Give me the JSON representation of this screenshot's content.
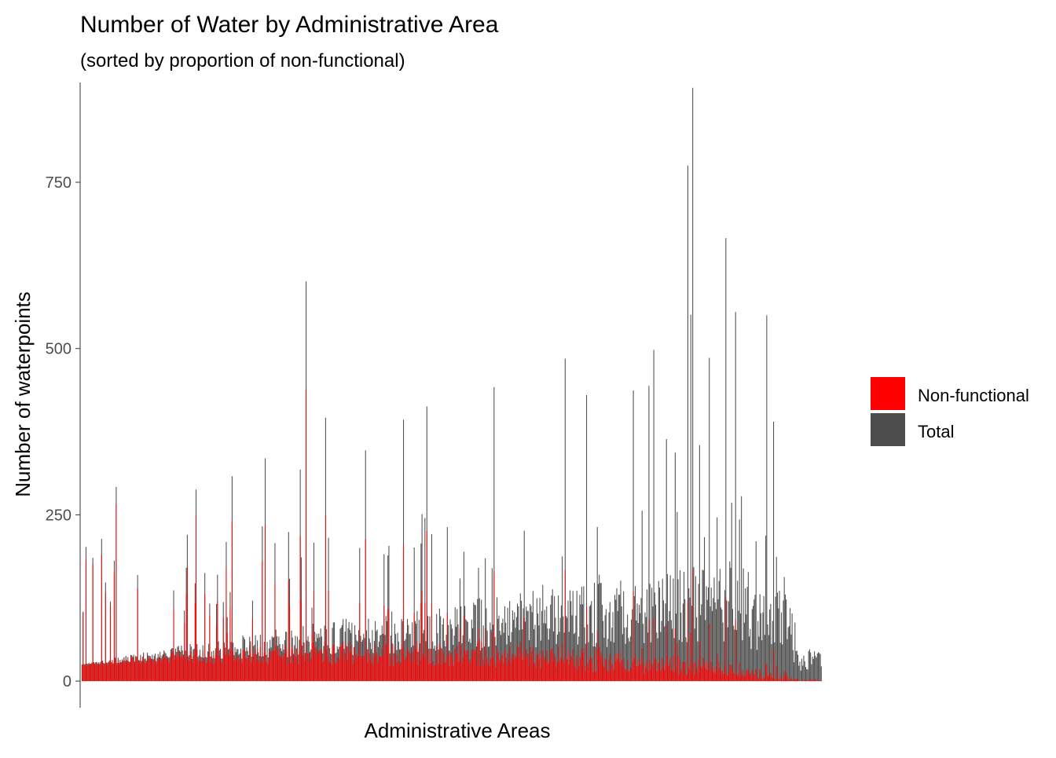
{
  "chart_data": {
    "type": "bar",
    "title": "Number of Water by Administrative Area",
    "subtitle": "(sorted by proportion of non-functional)",
    "xlabel": "Administrative Areas",
    "ylabel": "Number of waterpoints",
    "ylim": [
      -40,
      900
    ],
    "yticks": [
      0,
      250,
      500,
      750
    ],
    "grid": false,
    "legend": {
      "position": "right",
      "entries": [
        {
          "name": "Non-functional",
          "color": "#FF0000"
        },
        {
          "name": "Total",
          "color": "#4D4D4D"
        }
      ]
    },
    "bar_count": 760,
    "peaks_total": [
      {
        "index": 35,
        "value": 292
      },
      {
        "index": 117,
        "value": 288
      },
      {
        "index": 154,
        "value": 308
      },
      {
        "index": 188,
        "value": 335
      },
      {
        "index": 224,
        "value": 318
      },
      {
        "index": 230,
        "value": 601
      },
      {
        "index": 250,
        "value": 396
      },
      {
        "index": 291,
        "value": 347
      },
      {
        "index": 330,
        "value": 393
      },
      {
        "index": 354,
        "value": 413
      },
      {
        "index": 423,
        "value": 442
      },
      {
        "index": 496,
        "value": 485
      },
      {
        "index": 518,
        "value": 430
      },
      {
        "index": 566,
        "value": 437
      },
      {
        "index": 582,
        "value": 444
      },
      {
        "index": 587,
        "value": 498
      },
      {
        "index": 622,
        "value": 775
      },
      {
        "index": 625,
        "value": 551
      },
      {
        "index": 627,
        "value": 892
      },
      {
        "index": 644,
        "value": 486
      },
      {
        "index": 661,
        "value": 666
      },
      {
        "index": 671,
        "value": 555
      },
      {
        "index": 703,
        "value": 550
      },
      {
        "index": 710,
        "value": 390
      }
    ]
  }
}
